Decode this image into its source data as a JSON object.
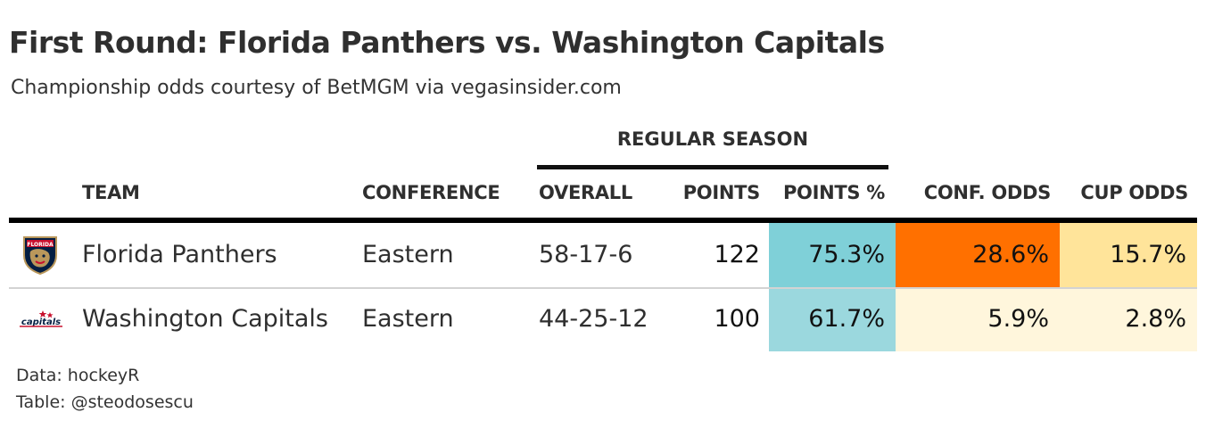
{
  "title": "First Round: Florida Panthers vs. Washington Capitals",
  "subtitle": "Championship odds courtesy of BetMGM via vegasinsider.com",
  "chart_data": {
    "type": "table",
    "spanner": "REGULAR SEASON",
    "columns": [
      "TEAM",
      "CONFERENCE",
      "OVERALL",
      "POINTS",
      "POINTS %",
      "CONF. ODDS",
      "CUP ODDS"
    ],
    "rows": [
      {
        "logo": "florida-panthers-logo",
        "team": "Florida Panthers",
        "conference": "Eastern",
        "overall": "58-17-6",
        "points": "122",
        "points_pct": "75.3%",
        "conf_odds": "28.6%",
        "cup_odds": "15.7%",
        "colors": {
          "points_pct": "#7fd0d8",
          "conf_odds": "#ff7000",
          "cup_odds": "#ffe49a"
        }
      },
      {
        "logo": "washington-capitals-logo",
        "team": "Washington Capitals",
        "conference": "Eastern",
        "overall": "44-25-12",
        "points": "100",
        "points_pct": "61.7%",
        "conf_odds": "5.9%",
        "cup_odds": "2.8%",
        "colors": {
          "points_pct": "#9bd8de",
          "conf_odds": "#fff6dc",
          "cup_odds": "#fff6dc"
        }
      }
    ]
  },
  "source_note": "Data: hockeyR",
  "credit_note": "Table: @steodosescu"
}
